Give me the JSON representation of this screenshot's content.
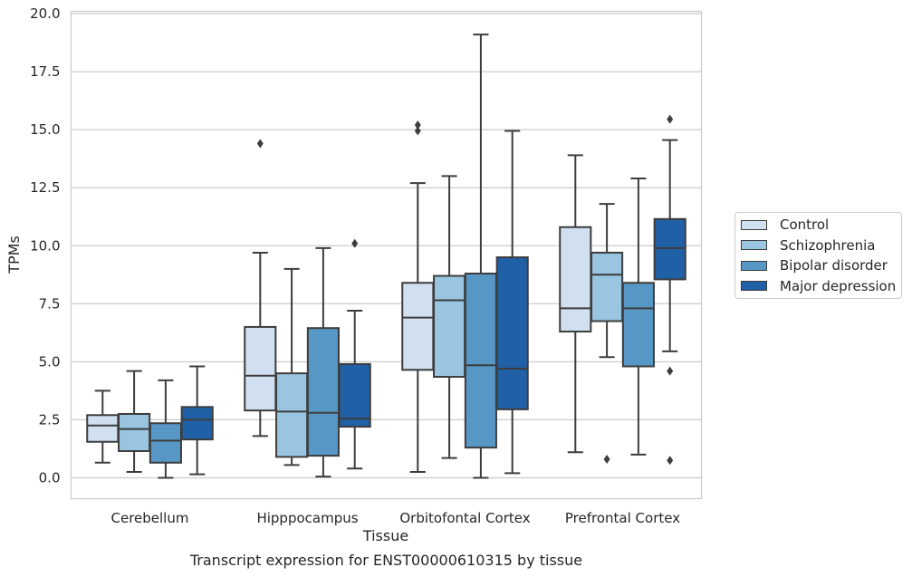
{
  "chart_data": {
    "type": "box",
    "title": "",
    "caption": "Transcript expression for ENST00000610315 by tissue",
    "xlabel": "Tissue",
    "ylabel": "TPMs",
    "ylim": [
      -0.9,
      20.1
    ],
    "y_ticks": [
      "0.0",
      "2.5",
      "5.0",
      "7.5",
      "10.0",
      "12.5",
      "15.0",
      "17.5",
      "20.0"
    ],
    "grid": true,
    "legend_position": "right",
    "categories": [
      "Cerebellum",
      "Hipppocampus",
      "Orbitofontal Cortex",
      "Prefrontal Cortex"
    ],
    "series": [
      {
        "name": "Control",
        "color": "#d0e0f0",
        "boxes": [
          {
            "whislo": 0.65,
            "q1": 1.55,
            "med": 2.25,
            "q3": 2.7,
            "whishi": 3.75,
            "fliers": []
          },
          {
            "whislo": 1.8,
            "q1": 2.9,
            "med": 4.4,
            "q3": 6.5,
            "whishi": 9.7,
            "fliers": [
              14.4
            ]
          },
          {
            "whislo": 0.25,
            "q1": 4.65,
            "med": 6.9,
            "q3": 8.4,
            "whishi": 12.7,
            "fliers": [
              14.95,
              15.2
            ]
          },
          {
            "whislo": 1.1,
            "q1": 6.3,
            "med": 7.3,
            "q3": 10.8,
            "whishi": 13.9,
            "fliers": []
          }
        ]
      },
      {
        "name": "Schizophrenia",
        "color": "#9ac5e0",
        "boxes": [
          {
            "whislo": 0.25,
            "q1": 1.15,
            "med": 2.1,
            "q3": 2.75,
            "whishi": 4.6,
            "fliers": []
          },
          {
            "whislo": 0.55,
            "q1": 0.9,
            "med": 2.85,
            "q3": 4.5,
            "whishi": 9.0,
            "fliers": []
          },
          {
            "whislo": 0.85,
            "q1": 4.35,
            "med": 7.65,
            "q3": 8.7,
            "whishi": 13.0,
            "fliers": []
          },
          {
            "whislo": 5.2,
            "q1": 6.75,
            "med": 8.75,
            "q3": 9.7,
            "whishi": 11.8,
            "fliers": [
              0.8
            ]
          }
        ]
      },
      {
        "name": "Bipolar disorder",
        "color": "#5797c6",
        "boxes": [
          {
            "whislo": 0.0,
            "q1": 0.65,
            "med": 1.6,
            "q3": 2.35,
            "whishi": 4.2,
            "fliers": []
          },
          {
            "whislo": 0.05,
            "q1": 0.95,
            "med": 2.8,
            "q3": 6.45,
            "whishi": 9.9,
            "fliers": []
          },
          {
            "whislo": 0.0,
            "q1": 1.3,
            "med": 4.85,
            "q3": 8.8,
            "whishi": 19.1,
            "fliers": []
          },
          {
            "whislo": 1.0,
            "q1": 4.8,
            "med": 7.3,
            "q3": 8.4,
            "whishi": 12.9,
            "fliers": []
          }
        ]
      },
      {
        "name": "Major depression",
        "color": "#2060a7",
        "boxes": [
          {
            "whislo": 0.15,
            "q1": 1.65,
            "med": 2.5,
            "q3": 3.05,
            "whishi": 4.8,
            "fliers": []
          },
          {
            "whislo": 0.4,
            "q1": 2.2,
            "med": 2.55,
            "q3": 4.9,
            "whishi": 7.2,
            "fliers": [
              10.1
            ]
          },
          {
            "whislo": 0.2,
            "q1": 2.95,
            "med": 4.7,
            "q3": 9.5,
            "whishi": 14.95,
            "fliers": []
          },
          {
            "whislo": 5.45,
            "q1": 8.55,
            "med": 9.9,
            "q3": 11.15,
            "whishi": 14.55,
            "fliers": [
              15.45,
              4.6,
              0.75
            ]
          }
        ]
      }
    ]
  }
}
